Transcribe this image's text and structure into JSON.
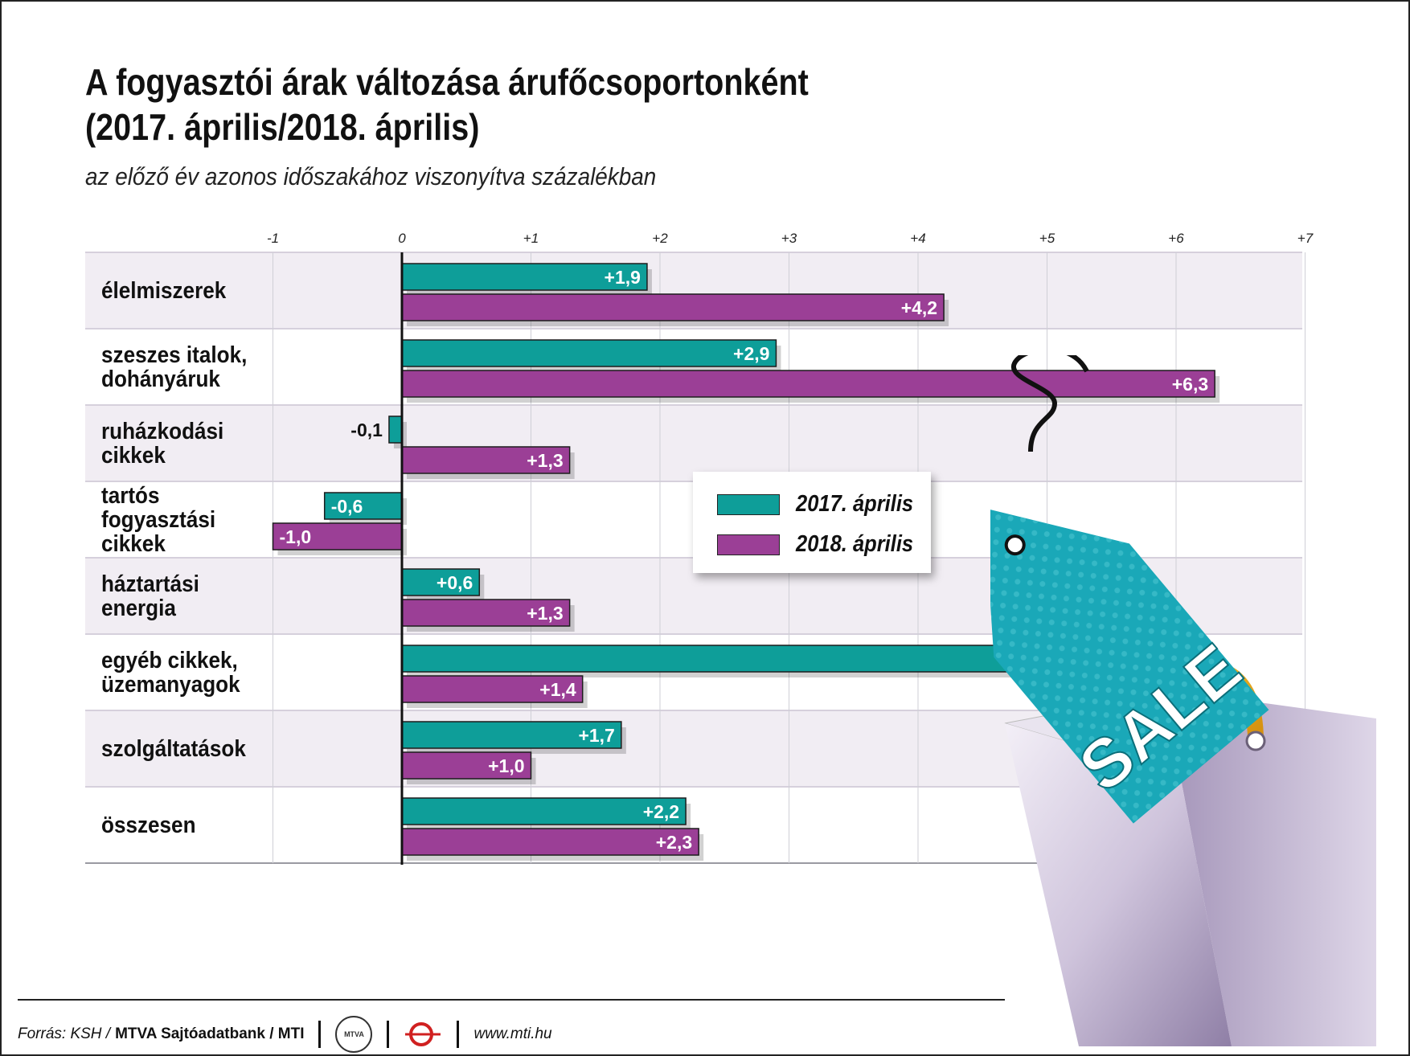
{
  "title": "A fogyasztói árak változása árufőcsoportonként\n(2017. április/2018. április)",
  "title_line1": "A fogyasztói árak változása árufőcsoportonként",
  "title_line2": "(2017. április/2018. április)",
  "subtitle": "az előző év azonos időszakához viszonyítva százalékban",
  "colors": {
    "series_2017": "#0e9e99",
    "series_2018": "#9b3f96",
    "band_shade": "#f1edf3",
    "grid": "#cfcfd6"
  },
  "chart_data": {
    "type": "bar",
    "orientation": "horizontal",
    "title": "A fogyasztói árak változása árufőcsoportonként (2017. április/2018. április)",
    "subtitle": "az előző év azonos időszakához viszonyítva százalékban",
    "categories": [
      "élelmiszerek",
      "szeszes italok,\ndohányáruk",
      "ruházkodási\ncikkek",
      "tartós\nfogyasztási\ncikkek",
      "háztartási\nenergia",
      "egyéb cikkek,\nüzemanyagok",
      "szolgáltatások",
      "összesen"
    ],
    "series": [
      {
        "name": "2017. április",
        "values": [
          1.9,
          2.9,
          -0.1,
          -0.6,
          0.6,
          5.0,
          1.7,
          2.2
        ],
        "labels": [
          "+1,9",
          "+2,9",
          "-0,1",
          "-0,6",
          "+0,6",
          "+5,0",
          "+1,7",
          "+2,2"
        ]
      },
      {
        "name": "2018. április",
        "values": [
          4.2,
          6.3,
          1.3,
          -1.0,
          1.3,
          1.4,
          1.0,
          2.3
        ],
        "labels": [
          "+4,2",
          "+6,3",
          "+1,3",
          "-1,0",
          "+1,3",
          "+1,4",
          "+1,0",
          "+2,3"
        ]
      }
    ],
    "xlim": [
      -1,
      7
    ],
    "x_ticks": [
      -1,
      0,
      1,
      2,
      3,
      4,
      5,
      6,
      7
    ],
    "x_tick_labels": [
      "-1",
      "0",
      "+1",
      "+2",
      "+3",
      "+4",
      "+5",
      "+6",
      "+7"
    ],
    "grid": true,
    "legend_position": "center-right"
  },
  "legend": {
    "items": [
      "2017. április",
      "2018. április"
    ]
  },
  "footer": {
    "source_label": "Forrás: KSH /",
    "org": "MTVA Sajtóadatbank / MTI",
    "logo_text": "MTVA",
    "url": "www.mti.hu"
  },
  "illustration": {
    "tag_text": "SALE"
  }
}
